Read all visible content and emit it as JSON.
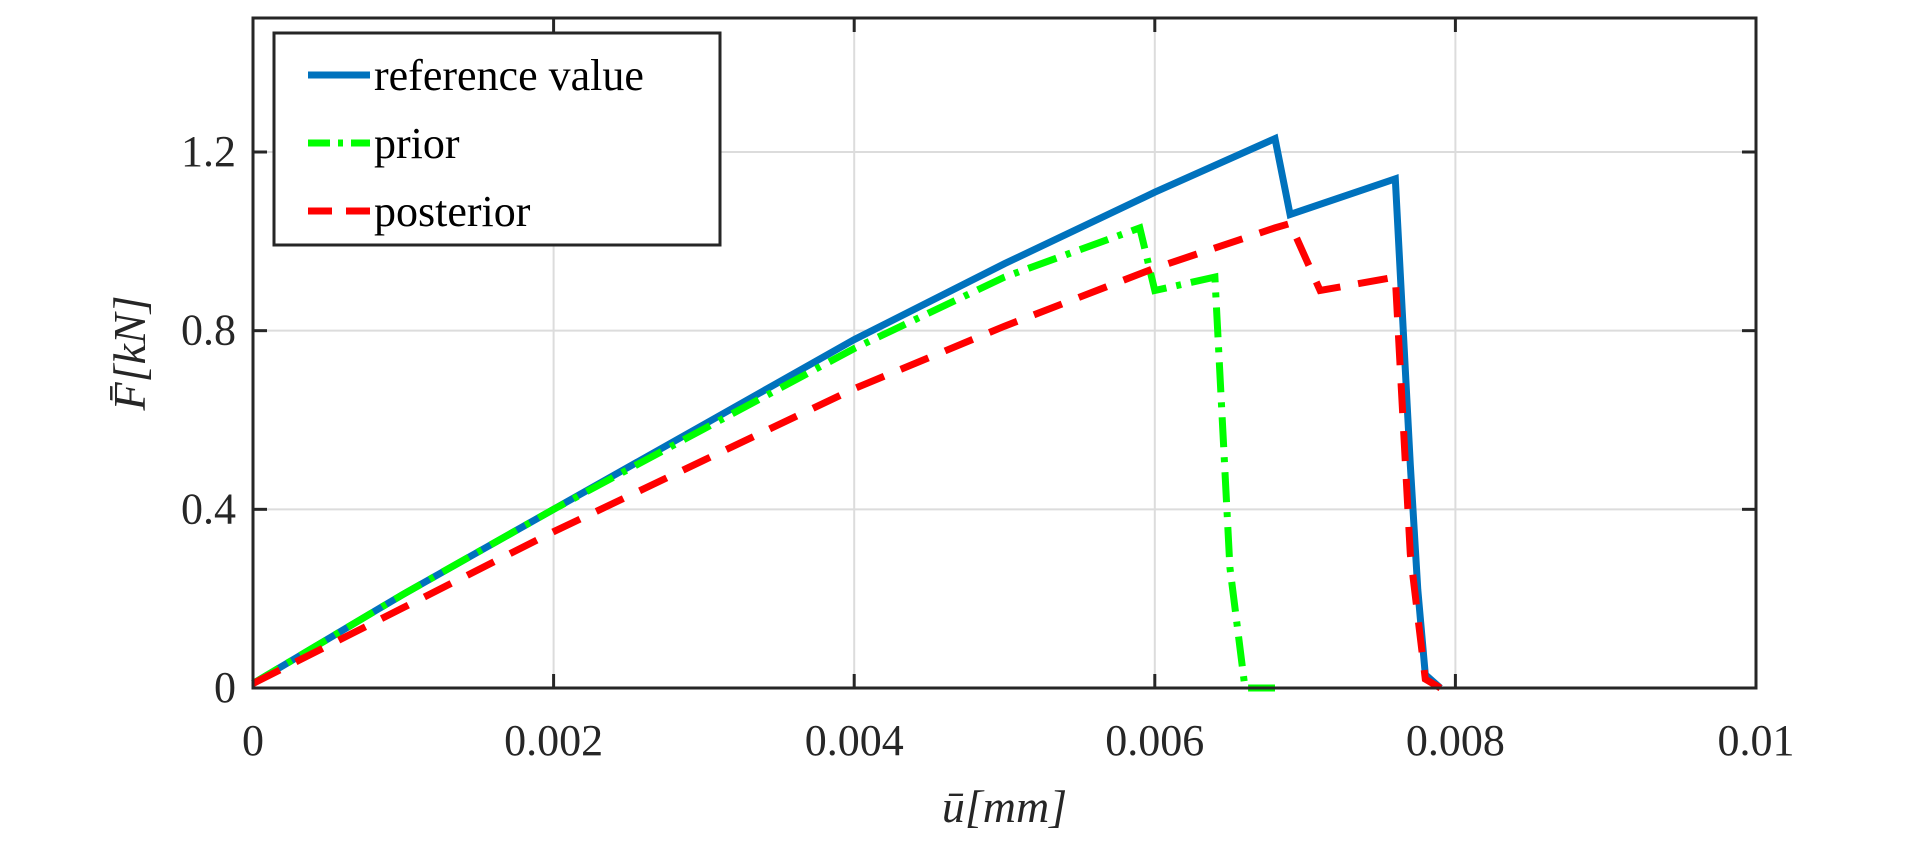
{
  "chart_data": {
    "type": "line",
    "xlabel": "ū[mm]",
    "ylabel": "F̄[kN]",
    "xlim": [
      0,
      0.01
    ],
    "ylim": [
      0,
      1.5
    ],
    "x_ticks": [
      0,
      0.002,
      0.004,
      0.006,
      0.008,
      0.01
    ],
    "x_tick_labels": [
      "0",
      "0.002",
      "0.004",
      "0.006",
      "0.008",
      "0.01"
    ],
    "y_ticks": [
      0,
      0.4,
      0.8,
      1.2
    ],
    "y_tick_labels": [
      "0",
      "0.4",
      "0.8",
      "1.2"
    ],
    "grid": true,
    "legend_position": "top-left",
    "series": [
      {
        "name": "reference value",
        "color": "#0072BD",
        "style": "solid",
        "x": [
          0,
          0.001,
          0.002,
          0.003,
          0.004,
          0.005,
          0.006,
          0.0068,
          0.0069,
          0.0076,
          0.0077,
          0.00775,
          0.0078,
          0.0079
        ],
        "y": [
          0.01,
          0.21,
          0.4,
          0.59,
          0.78,
          0.95,
          1.11,
          1.23,
          1.06,
          1.14,
          0.5,
          0.22,
          0.03,
          0.0
        ]
      },
      {
        "name": "prior",
        "color": "#00FF00",
        "style": "dashdot",
        "x": [
          0,
          0.001,
          0.002,
          0.003,
          0.004,
          0.005,
          0.0059,
          0.006,
          0.0064,
          0.0065,
          0.0066,
          0.00675,
          0.0068
        ],
        "y": [
          0.01,
          0.21,
          0.4,
          0.58,
          0.76,
          0.92,
          1.03,
          0.89,
          0.92,
          0.27,
          0.0,
          0.0,
          0.0
        ]
      },
      {
        "name": "posterior",
        "color": "#FF0000",
        "style": "dashed",
        "x": [
          0,
          0.001,
          0.002,
          0.003,
          0.004,
          0.005,
          0.006,
          0.0068,
          0.0069,
          0.0071,
          0.0076,
          0.0077,
          0.0078,
          0.0079
        ],
        "y": [
          0.01,
          0.18,
          0.35,
          0.51,
          0.67,
          0.81,
          0.94,
          1.03,
          1.04,
          0.89,
          0.92,
          0.3,
          0.02,
          0.0
        ]
      }
    ]
  }
}
